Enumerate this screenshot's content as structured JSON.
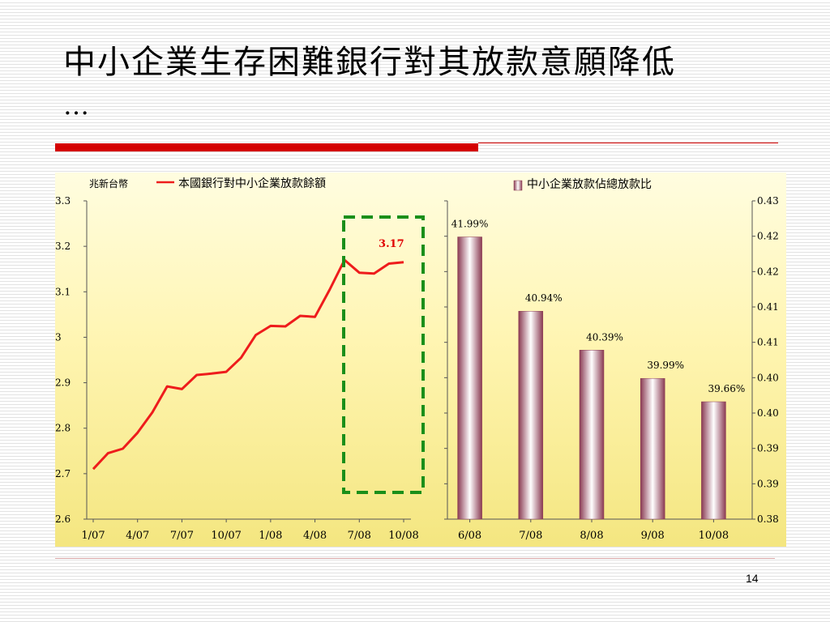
{
  "slide": {
    "title": "中小企業生存困難銀行對其放款意願降低",
    "title_continuation": "…",
    "page_number": "14"
  },
  "colors": {
    "line": "#ee1c1c",
    "label_red": "#e00000",
    "highlight_box": "#1a8f1a",
    "bar_fill": "#9b5468",
    "accent_rule": "#d40000"
  },
  "chart_data": [
    {
      "type": "line",
      "unit_label": "兆新台幣",
      "legend": "本國銀行對中小企業放款餘額",
      "series_name": "本國銀行對中小企業放款餘額",
      "x_tick_labels": [
        "1/07",
        "4/07",
        "7/07",
        "10/07",
        "1/08",
        "4/08",
        "7/08",
        "10/08"
      ],
      "y_ticks": [
        2.6,
        2.7,
        2.8,
        2.9,
        3,
        3.1,
        3.2,
        3.3
      ],
      "ylim": [
        2.6,
        3.3
      ],
      "values": [
        2.71,
        2.745,
        2.755,
        2.79,
        2.835,
        2.892,
        2.886,
        2.917,
        2.92,
        2.924,
        2.955,
        3.005,
        3.025,
        3.024,
        3.047,
        3.045,
        3.105,
        3.17,
        3.142,
        3.14,
        3.162,
        3.165
      ],
      "annotation": "3.17",
      "highlight_region": "7/08–10/08",
      "grid": false
    },
    {
      "type": "bar",
      "legend": "中小企業放款佔總放款比",
      "series_name": "中小企業放款佔總放款比",
      "categories": [
        "6/08",
        "7/08",
        "8/08",
        "9/08",
        "10/08"
      ],
      "values": [
        0.4199,
        0.4094,
        0.4039,
        0.3999,
        0.3966
      ],
      "data_labels": [
        "41.99%",
        "40.94%",
        "40.39%",
        "39.99%",
        "39.66%"
      ],
      "y_tick_labels": [
        "0.43",
        "0.42",
        "0.42",
        "0.41",
        "0.41",
        "0.40",
        "0.40",
        "0.39",
        "0.39",
        "0.38"
      ],
      "ylim": [
        0.38,
        0.425
      ],
      "grid": false
    }
  ]
}
